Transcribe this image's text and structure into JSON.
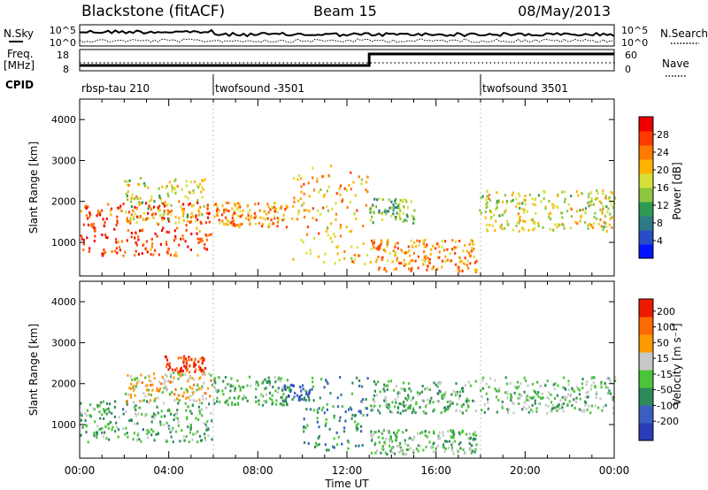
{
  "header": {
    "station": "Blackstone (fitACF)",
    "beam": "Beam 15",
    "date": "08/May/2013"
  },
  "top_panels": {
    "nsky_label": "N.Sky",
    "nsearch_label": "N.Search",
    "noise_ticks": [
      "10^5",
      "10^0"
    ],
    "freq_label_line1": "Freq.",
    "freq_label_line2": "[MHz]",
    "freq_ticks": [
      "18",
      "8"
    ],
    "nave_label": "Nave",
    "nave_ticks": [
      "60",
      "0"
    ],
    "cpid_label": "CPID",
    "cpid_segments": [
      {
        "start_hour": 0,
        "end_hour": 6,
        "label": "rbsp-tau 210"
      },
      {
        "start_hour": 6,
        "end_hour": 18,
        "label": "twofsound -3501"
      },
      {
        "start_hour": 18,
        "end_hour": 24,
        "label": "twofsound 3501"
      }
    ]
  },
  "chart_data": [
    {
      "type": "heatmap",
      "title": "",
      "ylabel": "Slant Range [km]",
      "xlabel": "",
      "xlim_hours": [
        0,
        24
      ],
      "ylim": [
        180,
        4500
      ],
      "yticks": [
        1000,
        2000,
        3000,
        4000
      ],
      "colorbar_label": "Power [dB]",
      "colorbar_ticks": [
        "4",
        "8",
        "12",
        "16",
        "20",
        "24",
        "28"
      ],
      "colorbar_colors": [
        "#0014ff",
        "#2a4cc8",
        "#2f7a88",
        "#2f9a52",
        "#8dc63f",
        "#d6e03a",
        "#ffb300",
        "#ff7a00",
        "#ff3a00",
        "#ee0000"
      ],
      "regions": [
        {
          "t0": 0.0,
          "t1": 5.9,
          "r0": 700,
          "r1": 2000,
          "level": 0.85
        },
        {
          "t0": 2.0,
          "t1": 5.6,
          "r0": 1500,
          "r1": 2600,
          "level": 0.55
        },
        {
          "t0": 6.0,
          "t1": 9.3,
          "r0": 1400,
          "r1": 2000,
          "level": 0.72
        },
        {
          "t0": 9.5,
          "t1": 12.9,
          "r0": 500,
          "r1": 2900,
          "level": 0.65
        },
        {
          "t0": 13.0,
          "t1": 17.8,
          "r0": 300,
          "r1": 1100,
          "level": 0.7
        },
        {
          "t0": 13.0,
          "t1": 15.0,
          "r0": 1500,
          "r1": 2100,
          "level": 0.4
        },
        {
          "t0": 17.9,
          "t1": 24.0,
          "r0": 1300,
          "r1": 2300,
          "level": 0.55
        }
      ]
    },
    {
      "type": "heatmap",
      "title": "",
      "ylabel": "Slant Range [km]",
      "xlabel": "Time UT",
      "xlim_hours": [
        0,
        24
      ],
      "xticks": [
        "00:00",
        "04:00",
        "08:00",
        "12:00",
        "16:00",
        "20:00",
        "00:00"
      ],
      "ylim": [
        180,
        4500
      ],
      "yticks": [
        1000,
        2000,
        3000,
        4000
      ],
      "colorbar_label": "Velocity [m s⁻¹]",
      "colorbar_ticks": [
        "200",
        "100",
        "50",
        "15",
        "-15",
        "-50",
        "-100",
        "-200"
      ],
      "colorbar_colors": [
        "#2a3cb8",
        "#3a5fc0",
        "#2f8a5a",
        "#4cc43a",
        "#c8c8c8",
        "#ff9a00",
        "#ff6a00",
        "#ee1a00"
      ],
      "regions": [
        {
          "t0": 0.0,
          "t1": 5.9,
          "r0": 600,
          "r1": 1600,
          "level": 0.42
        },
        {
          "t0": 2.0,
          "t1": 6.0,
          "r0": 1600,
          "r1": 2300,
          "level": 0.62
        },
        {
          "t0": 3.8,
          "t1": 5.6,
          "r0": 2300,
          "r1": 2700,
          "level": 0.92
        },
        {
          "t0": 6.0,
          "t1": 9.3,
          "r0": 1500,
          "r1": 2200,
          "level": 0.42
        },
        {
          "t0": 9.0,
          "t1": 10.3,
          "r0": 1600,
          "r1": 2000,
          "level": 0.22
        },
        {
          "t0": 10.0,
          "t1": 12.9,
          "r0": 400,
          "r1": 2200,
          "level": 0.3
        },
        {
          "t0": 13.0,
          "t1": 17.8,
          "r0": 300,
          "r1": 900,
          "level": 0.45
        },
        {
          "t0": 13.0,
          "t1": 17.8,
          "r0": 1300,
          "r1": 2100,
          "level": 0.42
        },
        {
          "t0": 17.9,
          "t1": 24.0,
          "r0": 1300,
          "r1": 2200,
          "level": 0.45
        }
      ]
    }
  ]
}
